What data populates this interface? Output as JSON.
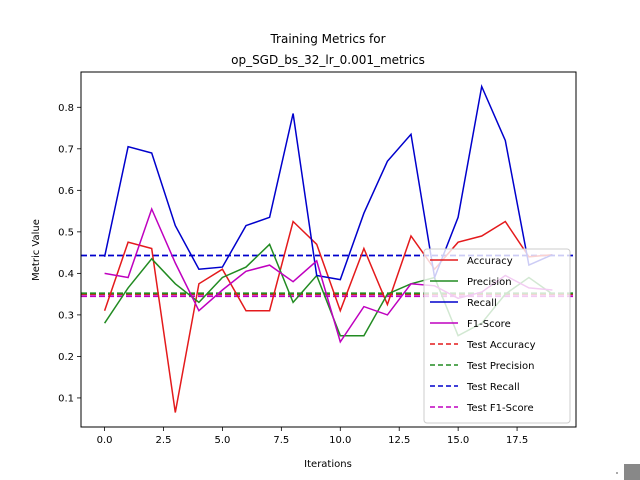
{
  "chart_data": {
    "type": "line",
    "title_lines": [
      "Training Metrics for",
      "op_SGD_bs_32_lr_0.001_metrics"
    ],
    "xlabel": "Iterations",
    "ylabel": "Metric Value",
    "xlim": [
      -1,
      20
    ],
    "ylim": [
      0.03,
      0.885
    ],
    "x_ticks": [
      0,
      2.5,
      5,
      7.5,
      10,
      12.5,
      15,
      17.5
    ],
    "x_tick_labels": [
      "0.0",
      "2.5",
      "5.0",
      "7.5",
      "10.0",
      "12.5",
      "15.0",
      "17.5"
    ],
    "y_ticks": [
      0.1,
      0.2,
      0.3,
      0.4,
      0.5,
      0.6,
      0.7,
      0.8
    ],
    "y_tick_labels": [
      "0.1",
      "0.2",
      "0.3",
      "0.4",
      "0.5",
      "0.6",
      "0.7",
      "0.8"
    ],
    "x": [
      0,
      1,
      2,
      3,
      4,
      5,
      6,
      7,
      8,
      9,
      10,
      11,
      12,
      13,
      14,
      15,
      16,
      17,
      18,
      19
    ],
    "series": [
      {
        "name": "Accuracy",
        "color": "#e41a1c",
        "style": "solid",
        "values": [
          0.31,
          0.475,
          0.46,
          0.065,
          0.375,
          0.41,
          0.31,
          0.31,
          0.525,
          0.47,
          0.31,
          0.46,
          0.325,
          0.49,
          0.41,
          0.475,
          0.49,
          0.525,
          0.44,
          0.445
        ]
      },
      {
        "name": "Precision",
        "color": "#228b22",
        "style": "solid",
        "values": [
          0.28,
          0.365,
          0.435,
          0.375,
          0.33,
          0.39,
          0.415,
          0.47,
          0.33,
          0.395,
          0.25,
          0.25,
          0.35,
          0.375,
          0.39,
          0.25,
          0.28,
          0.35,
          0.39,
          0.35
        ]
      },
      {
        "name": "Recall",
        "color": "#0000cc",
        "style": "solid",
        "values": [
          0.44,
          0.705,
          0.69,
          0.515,
          0.41,
          0.415,
          0.515,
          0.535,
          0.785,
          0.395,
          0.385,
          0.545,
          0.67,
          0.735,
          0.39,
          0.535,
          0.85,
          0.72,
          0.42,
          0.445
        ]
      },
      {
        "name": "F1-Score",
        "color": "#bf00bf",
        "style": "solid",
        "values": [
          0.4,
          0.39,
          0.555,
          0.425,
          0.31,
          0.36,
          0.405,
          0.42,
          0.38,
          0.43,
          0.235,
          0.32,
          0.3,
          0.375,
          0.37,
          0.34,
          0.355,
          0.395,
          0.365,
          0.36
        ]
      }
    ],
    "test_lines": [
      {
        "name": "Test Accuracy",
        "color": "#e41a1c",
        "style": "dashed",
        "value": 0.35
      },
      {
        "name": "Test Precision",
        "color": "#228b22",
        "style": "dashed",
        "value": 0.352
      },
      {
        "name": "Test Recall",
        "color": "#0000cc",
        "style": "dashed",
        "value": 0.443
      },
      {
        "name": "Test F1-Score",
        "color": "#bf00bf",
        "style": "dashed",
        "value": 0.345
      }
    ],
    "legend_position": "lower-right",
    "grid": false
  }
}
